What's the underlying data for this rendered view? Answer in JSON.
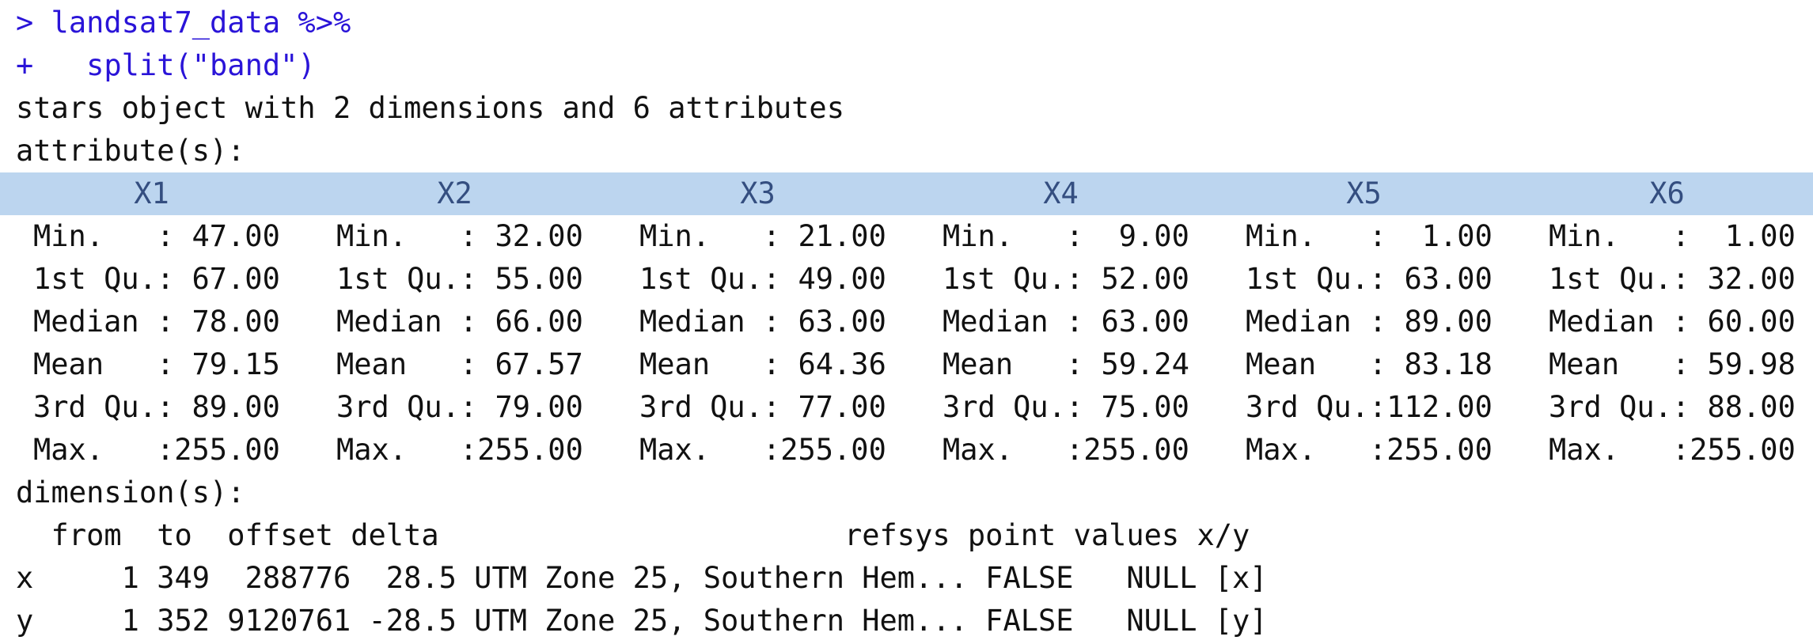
{
  "console": {
    "command_line_1": "> landsat7_data %>%",
    "command_line_2": "+   split(\"band\")",
    "summary_line": "stars object with 2 dimensions and 6 attributes",
    "attributes_label": "attribute(s):",
    "columns": [
      {
        "header": "X1",
        "rows": [
          "Min.   : 47.00",
          "1st Qu.: 67.00",
          "Median : 78.00",
          "Mean   : 79.15",
          "3rd Qu.: 89.00",
          "Max.   :255.00"
        ]
      },
      {
        "header": "X2",
        "rows": [
          "Min.   : 32.00",
          "1st Qu.: 55.00",
          "Median : 66.00",
          "Mean   : 67.57",
          "3rd Qu.: 79.00",
          "Max.   :255.00"
        ]
      },
      {
        "header": "X3",
        "rows": [
          "Min.   : 21.00",
          "1st Qu.: 49.00",
          "Median : 63.00",
          "Mean   : 64.36",
          "3rd Qu.: 77.00",
          "Max.   :255.00"
        ]
      },
      {
        "header": "X4",
        "rows": [
          "Min.   :  9.00",
          "1st Qu.: 52.00",
          "Median : 63.00",
          "Mean   : 59.24",
          "3rd Qu.: 75.00",
          "Max.   :255.00"
        ]
      },
      {
        "header": "X5",
        "rows": [
          "Min.   :  1.00",
          "1st Qu.: 63.00",
          "Median : 89.00",
          "Mean   : 83.18",
          "3rd Qu.:112.00",
          "Max.   :255.00"
        ]
      },
      {
        "header": "X6",
        "rows": [
          "Min.   :  1.00",
          "1st Qu.: 32.00",
          "Median : 60.00",
          "Mean   : 59.98",
          "3rd Qu.: 88.00",
          "Max.   :255.00"
        ]
      }
    ],
    "dimensions_label": "dimension(s):",
    "dimension_header": "  from  to  offset delta                       refsys point values x/y",
    "dimension_rows": [
      "x     1 349  288776  28.5 UTM Zone 25, Southern Hem... FALSE   NULL [x]",
      "y     1 352 9120761 -28.5 UTM Zone 25, Southern Hem... FALSE   NULL [y]"
    ]
  }
}
